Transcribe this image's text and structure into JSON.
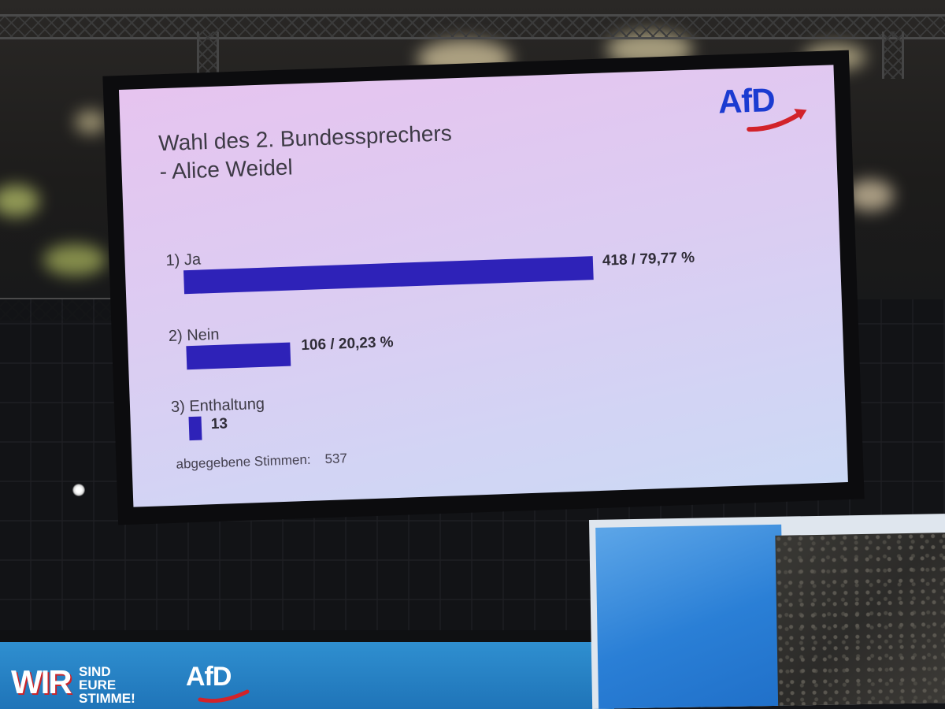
{
  "slide": {
    "title_line1": "Wahl des 2. Bundessprechers",
    "title_line2": "- Alice Weidel",
    "logo_text": "AfD",
    "results": [
      {
        "label": "1) Ja",
        "value_text": "418 / 79,77 %",
        "votes": 418
      },
      {
        "label": "2) Nein",
        "value_text": "106 / 20,23 %",
        "votes": 106
      },
      {
        "label": "3) Enthaltung",
        "value_text": "13",
        "votes": 13
      }
    ],
    "total_label": "abgegebene Stimmen:",
    "total_value": "537"
  },
  "stage": {
    "slogan_big": "WIR",
    "slogan_small_1": "SIND",
    "slogan_small_2": "EURE",
    "slogan_small_3": "STIMME!",
    "logo_text": "AfD"
  },
  "colors": {
    "bar": "#2e22b8",
    "logo_blue": "#1b3bd1",
    "logo_red": "#d2232a",
    "stage_blue": "#1f74b8"
  }
}
